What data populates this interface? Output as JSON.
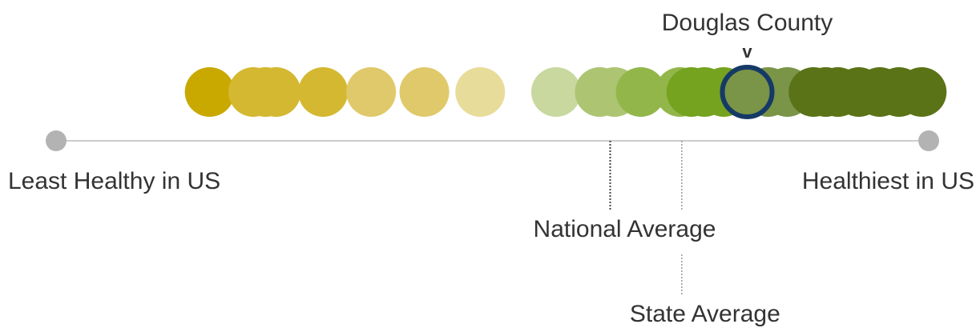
{
  "chart_data": {
    "type": "scatter",
    "title": "",
    "scale": {
      "min_label": "Least Healthy in US",
      "max_label": "Healthiest in US",
      "min": 0,
      "max": 100
    },
    "axis_color": "#cccccc",
    "endpoint_color": "#b3b3b3",
    "points": [
      {
        "value": 17.6,
        "color": "#c9a800"
      },
      {
        "value": 22.6,
        "color": "#d4b832"
      },
      {
        "value": 24.0,
        "color": "#d4b832"
      },
      {
        "value": 25.2,
        "color": "#d4b832"
      },
      {
        "value": 30.6,
        "color": "#d4b832"
      },
      {
        "value": 36.1,
        "color": "#e0c96a"
      },
      {
        "value": 42.2,
        "color": "#e0c96a"
      },
      {
        "value": 48.6,
        "color": "#e8dc9a"
      },
      {
        "value": 57.3,
        "color": "#c8d89e"
      },
      {
        "value": 62.3,
        "color": "#adc572"
      },
      {
        "value": 64.0,
        "color": "#adc572"
      },
      {
        "value": 67.0,
        "color": "#93b64a"
      },
      {
        "value": 71.5,
        "color": "#93b64a"
      },
      {
        "value": 72.8,
        "color": "#75a320"
      },
      {
        "value": 74.3,
        "color": "#75a320"
      },
      {
        "value": 76.5,
        "color": "#75a320"
      },
      {
        "value": 79.2,
        "color": "#75a320"
      },
      {
        "value": 81.6,
        "color": "#7a9448"
      },
      {
        "value": 83.8,
        "color": "#7a9448"
      },
      {
        "value": 86.8,
        "color": "#5a7317"
      },
      {
        "value": 88.2,
        "color": "#5a7317"
      },
      {
        "value": 89.6,
        "color": "#5a7317"
      },
      {
        "value": 92.0,
        "color": "#5a7317"
      },
      {
        "value": 94.4,
        "color": "#5a7317"
      },
      {
        "value": 96.6,
        "color": "#5a7317"
      },
      {
        "value": 99.2,
        "color": "#5a7317"
      }
    ],
    "highlight": {
      "label": "Douglas County",
      "marker": "v",
      "value": 79.2,
      "fill": "#7a9448",
      "stroke": "#153a66"
    },
    "references": [
      {
        "label": "National Average",
        "value": 63.5,
        "line_color": "#444444"
      },
      {
        "label": "State Average",
        "value": 71.7,
        "line_color": "#9a9a9a"
      }
    ]
  }
}
